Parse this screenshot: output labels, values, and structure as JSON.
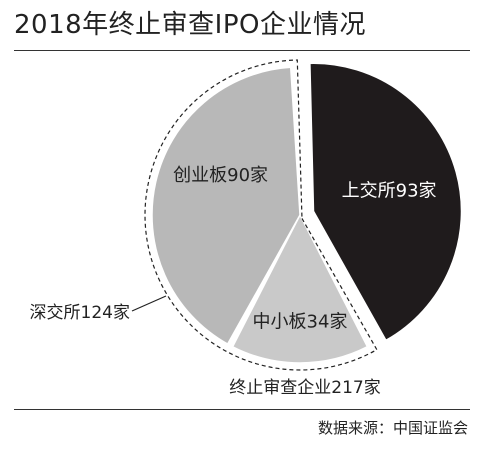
{
  "title": "2018年终止审查IPO企业情况",
  "source": "数据来源：中国证监会",
  "chart_data": {
    "type": "pie",
    "title": "2018年终止审查IPO企业情况",
    "total_label": "终止审查企业217家",
    "categories": [
      "上交所",
      "创业板",
      "中小板"
    ],
    "values": [
      93,
      90,
      34
    ],
    "slice_labels": [
      "上交所93家",
      "创业板90家",
      "中小板34家"
    ],
    "group": {
      "label": "深交所124家",
      "members": [
        "创业板",
        "中小板"
      ],
      "value": 124
    },
    "colors": {
      "上交所": "#1f1b1c",
      "创业板": "#b8b8b8",
      "中小板": "#c9c9c9",
      "label_on_dark": "#ffffff",
      "label_on_light": "#222222"
    },
    "exploded": [
      "上交所"
    ],
    "legend": "none"
  }
}
